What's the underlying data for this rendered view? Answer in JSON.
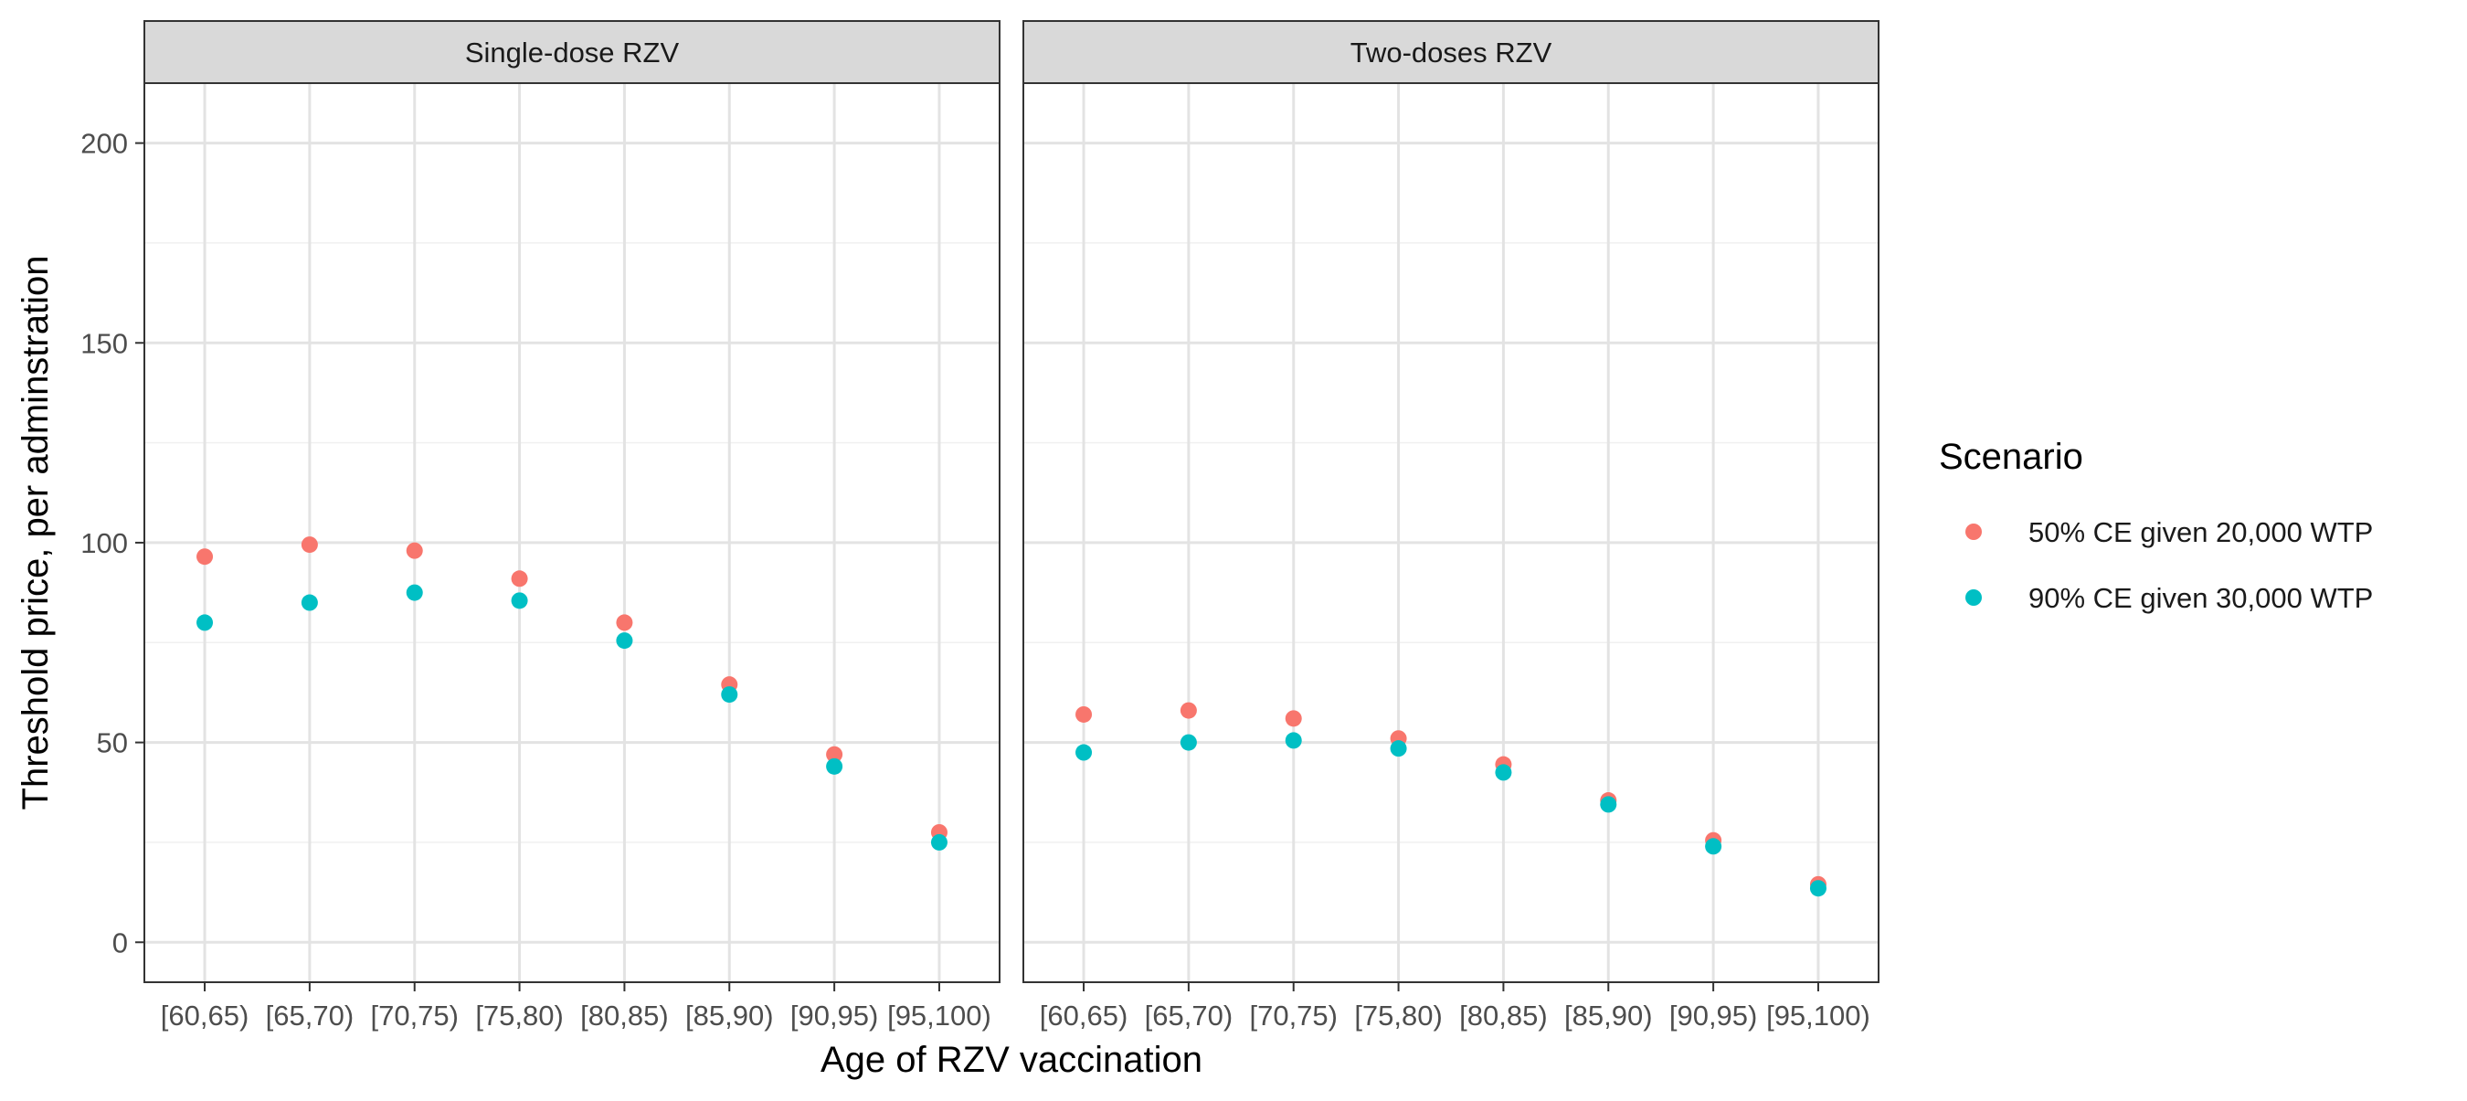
{
  "chart_data": {
    "type": "scatter",
    "xlabel": "Age of RZV vaccination",
    "ylabel": "Threshold price, per adminstration",
    "ylim": [
      -10,
      215
    ],
    "y_ticks": [
      0,
      50,
      100,
      150,
      200
    ],
    "y_minor_ticks": [
      25,
      75,
      125,
      175
    ],
    "categories": [
      "[60,65)",
      "[65,70)",
      "[70,75)",
      "[75,80)",
      "[80,85)",
      "[85,90)",
      "[90,95)",
      "[95,100)"
    ],
    "grid": true,
    "legend": {
      "title": "Scenario",
      "position": "right"
    },
    "series": [
      {
        "name": "50% CE given 20,000 WTP",
        "color": "#F8766D"
      },
      {
        "name": "90% CE given 30,000 WTP",
        "color": "#00BFC4"
      }
    ],
    "panels": [
      {
        "title": "Single-dose RZV",
        "values": [
          [
            96.5,
            99.5,
            98,
            91,
            80,
            64.5,
            47,
            27.5
          ],
          [
            80,
            85,
            87.5,
            85.5,
            75.5,
            62,
            44,
            25
          ]
        ]
      },
      {
        "title": "Two-doses RZV",
        "values": [
          [
            57,
            58,
            56,
            51,
            44.5,
            35.5,
            25.5,
            14.5
          ],
          [
            47.5,
            50,
            50.5,
            48.5,
            42.5,
            34.5,
            24,
            13.5
          ]
        ]
      }
    ]
  }
}
